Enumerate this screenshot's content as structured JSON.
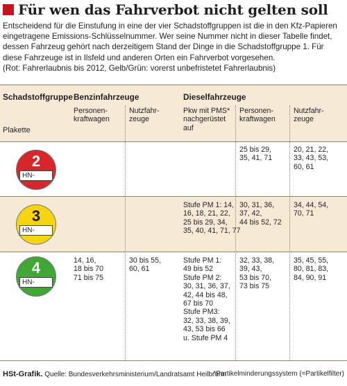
{
  "title": "Für wen das Fahrverbot nicht gelten soll",
  "intro": "Entscheidend für die Einstufung in eine der vier Schadstoffgruppen ist die in den Kfz-Papieren eingetragene Emissions-Schlüsselnummer. Wer seine Nummer nicht in dieser Tabelle findet, dessen Fahrzeug gehört nach derzeitigem Stand der Dinge in die Schadstoffgruppe 1. Für diese Fahrzeuge ist in Ilsfeld und anderen Orten ein Fahrverbot vorgesehen.",
  "note": "(Rot: Fahrerlaubnis bis 2012, Gelb/Grün: vorerst unbefristetet Fahrerlaubnis)",
  "header": {
    "group": "Schadstoffgruppe",
    "plakette": "Plakette",
    "benzin": "Benzinfahrzeuge",
    "diesel": "Dieselfahrzeuge",
    "benzin_pkw": "Personen-\nkraftwagen",
    "benzin_nfz": "Nutzfahr-\nzeuge",
    "diesel_pms": "Pkw mit PMS*\nnachgerüstet\nauf",
    "diesel_pkw": "Personen-\nkraftwagen",
    "diesel_nfz": "Nutzfahr-\nzeuge"
  },
  "rows": [
    {
      "group_number": "2",
      "plate_text": "HN-",
      "badge_color": "#d7262c",
      "benzin_pkw": "",
      "benzin_nfz": "",
      "diesel_pms": "",
      "diesel_pkw": "25 bis 29,\n35, 41, 71",
      "diesel_nfz": "20, 21, 22,\n33, 43, 53,\n60, 61"
    },
    {
      "group_number": "3",
      "plate_text": "HN-",
      "badge_color": "#f5d411",
      "benzin_pkw": "",
      "benzin_nfz": "",
      "diesel_pms": "Stufe PM 1: 14,\n16, 18, 21, 22,\n25 bis 29, 34,\n35, 40, 41, 71, 77",
      "diesel_pkw": "30, 31, 36,\n37, 42,\n44 bis 52, 72",
      "diesel_nfz": "34, 44, 54,\n70, 71"
    },
    {
      "group_number": "4",
      "plate_text": "HN-",
      "badge_color": "#3fa535",
      "benzin_pkw": "14, 16,\n18 bis 70\n71 bis 75",
      "benzin_nfz": "30 bis 55,\n60, 61",
      "diesel_pms": "Stufe PM 1:\n49 bis 52\nStufe PM 2:\n30, 31, 36, 37,\n42, 44 bis 48,\n67 bis 70\nStufe PM3:\n32, 33, 38, 39,\n43, 53 bis 66\nu. Stufe PM 4",
      "diesel_pkw": "32, 33, 38,\n39, 43,\n53 bis 70,\n73 bis 75",
      "diesel_nfz": "35, 45, 55,\n80, 81, 83,\n84, 90, 91"
    }
  ],
  "footer": {
    "credit_label": "HSt-Grafik.",
    "credit_source": " Quelle: Bundesverkehrsministerium/Landratsamt Heilbronn",
    "footnote": "*Partikelminderungssystem (=Partikelfilter)"
  }
}
